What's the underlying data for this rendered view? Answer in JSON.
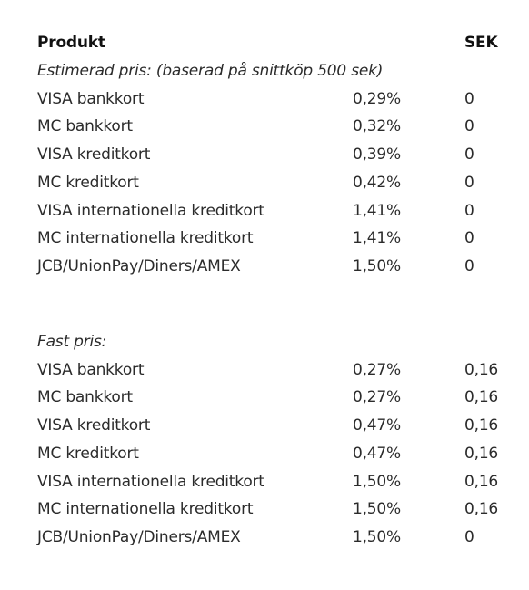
{
  "header": {
    "product": "Produkt",
    "currency": "SEK"
  },
  "sections": [
    {
      "title": "Estimerad pris: (baserad på snittköp 500 sek)",
      "rows": [
        [
          "VISA bankkort",
          "0,29%",
          "0"
        ],
        [
          "MC bankkort",
          "0,32%",
          "0"
        ],
        [
          "VISA kreditkort",
          "0,39%",
          "0"
        ],
        [
          "MC kreditkort",
          "0,42%",
          "0"
        ],
        [
          "VISA internationella kreditkort",
          "1,41%",
          "0"
        ],
        [
          "MC internationella kreditkort",
          "1,41%",
          "0"
        ],
        [
          "JCB/UnionPay/Diners/AMEX",
          "1,50%",
          "0"
        ]
      ]
    },
    {
      "title": "Fast pris:",
      "rows": [
        [
          "VISA bankkort",
          "0,27%",
          "0,16"
        ],
        [
          "MC bankkort",
          "0,27%",
          "0,16"
        ],
        [
          "VISA kreditkort",
          "0,47%",
          "0,16"
        ],
        [
          "MC kreditkort",
          "0,47%",
          "0,16"
        ],
        [
          "VISA internationella kreditkort",
          "1,50%",
          "0,16"
        ],
        [
          "MC internationella kreditkort",
          "1,50%",
          "0,16"
        ],
        [
          "JCB/UnionPay/Diners/AMEX",
          "1,50%",
          "0"
        ]
      ]
    }
  ]
}
